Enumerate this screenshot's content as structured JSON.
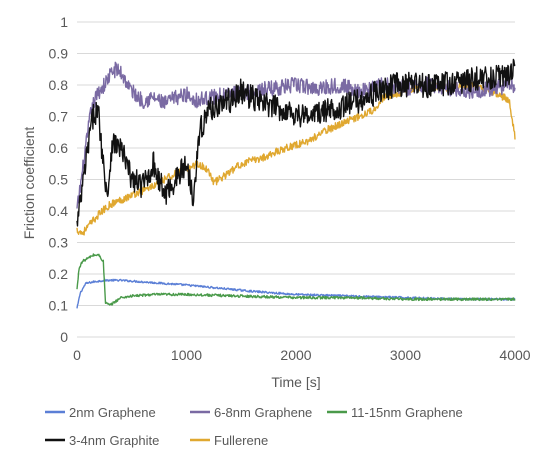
{
  "chart_data": {
    "type": "line",
    "title": "",
    "xlabel": "Time [s]",
    "ylabel": "Friction coefficient",
    "xlim": [
      0,
      4000
    ],
    "ylim": [
      0,
      1
    ],
    "x_ticks": [
      "0",
      "1000",
      "2000",
      "3000",
      "4000"
    ],
    "y_ticks": [
      "0",
      "0.1",
      "0.2",
      "0.3",
      "0.4",
      "0.5",
      "0.6",
      "0.7",
      "0.8",
      "0.9",
      "1"
    ],
    "grid": "horizontal",
    "legend_position": "bottom",
    "series": [
      {
        "name": "2nm Graphene",
        "color": "#5b7fd6",
        "noise": 0.003,
        "x": [
          0,
          30,
          80,
          150,
          250,
          400,
          600,
          800,
          1000,
          1300,
          1600,
          2000,
          2500,
          3000,
          3500,
          4000
        ],
        "y": [
          0.09,
          0.14,
          0.17,
          0.175,
          0.18,
          0.18,
          0.175,
          0.17,
          0.165,
          0.155,
          0.145,
          0.135,
          0.13,
          0.125,
          0.12,
          0.12
        ]
      },
      {
        "name": "6-8nm Graphene",
        "color": "#7a6aa3",
        "noise": 0.025,
        "x": [
          0,
          40,
          80,
          120,
          160,
          200,
          250,
          300,
          350,
          400,
          500,
          600,
          700,
          800,
          900,
          1000,
          1100,
          1200,
          1400,
          1600,
          1800,
          2000,
          2200,
          2400,
          2600,
          2800,
          3000,
          3200,
          3400,
          3600,
          3800,
          4000
        ],
        "y": [
          0.4,
          0.5,
          0.6,
          0.7,
          0.75,
          0.78,
          0.8,
          0.83,
          0.85,
          0.84,
          0.78,
          0.75,
          0.76,
          0.74,
          0.76,
          0.77,
          0.75,
          0.76,
          0.77,
          0.78,
          0.79,
          0.8,
          0.79,
          0.8,
          0.78,
          0.8,
          0.79,
          0.8,
          0.79,
          0.78,
          0.79,
          0.8
        ]
      },
      {
        "name": "11-15nm Graphene",
        "color": "#4a9a4a",
        "noise": 0.004,
        "x": [
          0,
          20,
          50,
          100,
          150,
          200,
          240,
          260,
          300,
          400,
          500,
          700,
          1000,
          1500,
          2000,
          2500,
          3000,
          3500,
          4000
        ],
        "y": [
          0.15,
          0.22,
          0.24,
          0.25,
          0.26,
          0.26,
          0.24,
          0.11,
          0.1,
          0.125,
          0.13,
          0.135,
          0.135,
          0.13,
          0.125,
          0.125,
          0.12,
          0.12,
          0.12
        ]
      },
      {
        "name": "3-4nm Graphite",
        "color": "#111111",
        "noise": 0.04,
        "x": [
          0,
          40,
          80,
          120,
          160,
          200,
          240,
          280,
          320,
          400,
          500,
          600,
          700,
          800,
          900,
          1000,
          1060,
          1120,
          1200,
          1300,
          1400,
          1500,
          1700,
          1900,
          2100,
          2300,
          2500,
          2700,
          2900,
          3100,
          3300,
          3500,
          3700,
          3900,
          4000
        ],
        "y": [
          0.35,
          0.45,
          0.55,
          0.65,
          0.72,
          0.7,
          0.55,
          0.45,
          0.62,
          0.6,
          0.5,
          0.48,
          0.55,
          0.45,
          0.5,
          0.55,
          0.45,
          0.65,
          0.72,
          0.74,
          0.75,
          0.78,
          0.74,
          0.72,
          0.7,
          0.72,
          0.74,
          0.77,
          0.8,
          0.8,
          0.8,
          0.81,
          0.82,
          0.83,
          0.85
        ]
      },
      {
        "name": "Fullerene",
        "color": "#e0a830",
        "noise": 0.012,
        "x": [
          0,
          50,
          100,
          200,
          300,
          500,
          700,
          900,
          1100,
          1200,
          1250,
          1300,
          1500,
          1700,
          1900,
          2100,
          2300,
          2500,
          2700,
          2800,
          3000,
          3200,
          3400,
          3600,
          3800,
          3950,
          4000
        ],
        "y": [
          0.34,
          0.33,
          0.35,
          0.39,
          0.42,
          0.45,
          0.48,
          0.52,
          0.55,
          0.53,
          0.49,
          0.5,
          0.55,
          0.57,
          0.6,
          0.62,
          0.66,
          0.69,
          0.72,
          0.76,
          0.78,
          0.8,
          0.79,
          0.8,
          0.78,
          0.75,
          0.63
        ]
      }
    ]
  }
}
